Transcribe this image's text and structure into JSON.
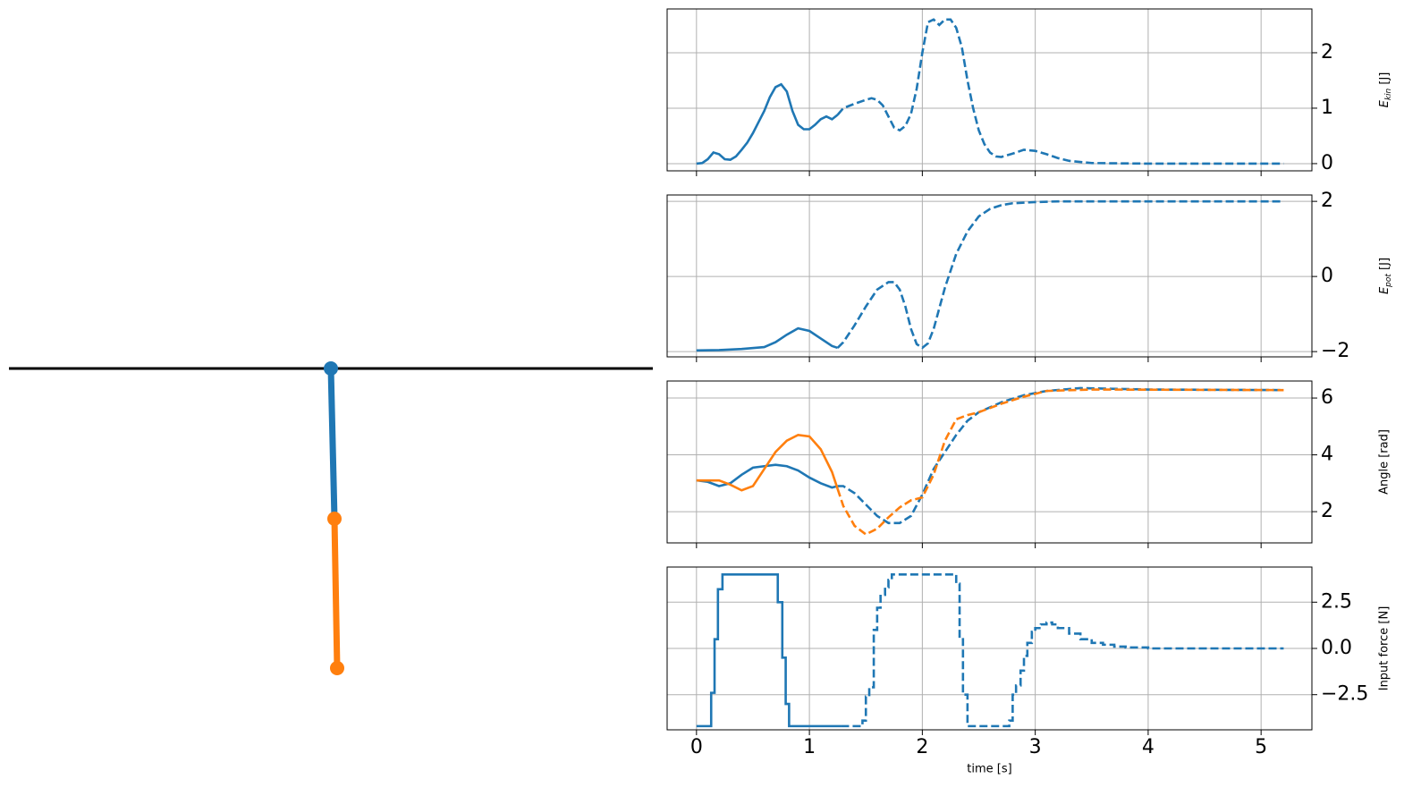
{
  "chart_data": [
    {
      "type": "line",
      "ylabel": {
        "base": "E",
        "sub": "kin",
        "rest": " [J]"
      },
      "xlim": [
        -0.26,
        5.45
      ],
      "xticks": [
        0,
        1,
        2,
        3,
        4,
        5
      ],
      "ylim": [
        -0.13,
        2.79
      ],
      "yticks": [
        0,
        1,
        2
      ],
      "grid": true,
      "series": [
        {
          "color": "#1f77b4",
          "style": "solid",
          "x": [
            0,
            0.05,
            0.1,
            0.15,
            0.2,
            0.25,
            0.3,
            0.35,
            0.4,
            0.45,
            0.5,
            0.55,
            0.6,
            0.65,
            0.7,
            0.75,
            0.8,
            0.85,
            0.9,
            0.95,
            1.0,
            1.05,
            1.1,
            1.15,
            1.2,
            1.25
          ],
          "values": [
            0,
            0.01,
            0.08,
            0.2,
            0.17,
            0.08,
            0.07,
            0.13,
            0.25,
            0.38,
            0.55,
            0.75,
            0.95,
            1.2,
            1.38,
            1.43,
            1.3,
            0.95,
            0.7,
            0.62,
            0.62,
            0.7,
            0.8,
            0.85,
            0.8,
            0.88
          ]
        },
        {
          "color": "#1f77b4",
          "style": "dashed",
          "x": [
            1.25,
            1.3,
            1.4,
            1.5,
            1.55,
            1.6,
            1.65,
            1.7,
            1.75,
            1.8,
            1.85,
            1.9,
            1.95,
            2.0,
            2.05,
            2.1,
            2.15,
            2.2,
            2.25,
            2.3,
            2.35,
            2.4,
            2.45,
            2.5,
            2.55,
            2.6,
            2.65,
            2.7,
            2.8,
            2.9,
            3.0,
            3.1,
            3.2,
            3.3,
            3.5,
            4.0,
            4.5,
            5.2
          ],
          "values": [
            0.88,
            1.0,
            1.08,
            1.15,
            1.18,
            1.15,
            1.05,
            0.85,
            0.65,
            0.6,
            0.68,
            0.9,
            1.35,
            2.0,
            2.55,
            2.6,
            2.5,
            2.6,
            2.6,
            2.45,
            2.1,
            1.5,
            1.0,
            0.6,
            0.35,
            0.2,
            0.13,
            0.12,
            0.18,
            0.25,
            0.23,
            0.17,
            0.1,
            0.05,
            0.01,
            0,
            0,
            0
          ]
        }
      ]
    },
    {
      "type": "line",
      "ylabel": {
        "base": "E",
        "sub": "pot",
        "rest": " [J]"
      },
      "xlim": [
        -0.26,
        5.45
      ],
      "xticks": [
        0,
        1,
        2,
        3,
        4,
        5
      ],
      "ylim": [
        -2.14,
        2.17
      ],
      "yticks": [
        {
          "value": -2,
          "label": "−2"
        },
        0,
        2
      ],
      "grid": true,
      "series": [
        {
          "color": "#1f77b4",
          "style": "solid",
          "x": [
            0,
            0.2,
            0.4,
            0.6,
            0.7,
            0.8,
            0.9,
            1.0,
            1.1,
            1.2,
            1.25
          ],
          "values": [
            -1.97,
            -1.96,
            -1.93,
            -1.88,
            -1.75,
            -1.55,
            -1.38,
            -1.45,
            -1.65,
            -1.85,
            -1.9
          ]
        },
        {
          "color": "#1f77b4",
          "style": "dashed",
          "x": [
            1.25,
            1.3,
            1.4,
            1.5,
            1.6,
            1.7,
            1.75,
            1.8,
            1.85,
            1.9,
            1.95,
            2.0,
            2.05,
            2.1,
            2.2,
            2.3,
            2.4,
            2.5,
            2.6,
            2.7,
            2.8,
            3.0,
            3.2,
            5.2
          ],
          "values": [
            -1.9,
            -1.75,
            -1.3,
            -0.8,
            -0.35,
            -0.15,
            -0.15,
            -0.35,
            -0.8,
            -1.4,
            -1.8,
            -1.9,
            -1.78,
            -1.4,
            -0.3,
            0.6,
            1.2,
            1.6,
            1.8,
            1.9,
            1.95,
            1.98,
            2.0,
            2.0
          ]
        }
      ]
    },
    {
      "type": "line",
      "ylabel": "Angle  [rad]",
      "xlim": [
        -0.26,
        5.45
      ],
      "xticks": [
        0,
        1,
        2,
        3,
        4,
        5
      ],
      "ylim": [
        0.9,
        6.6
      ],
      "yticks": [
        2,
        4,
        6
      ],
      "grid": true,
      "series": [
        {
          "color": "#1f77b4",
          "style": "solid",
          "x": [
            0,
            0.1,
            0.2,
            0.3,
            0.4,
            0.5,
            0.6,
            0.7,
            0.8,
            0.9,
            1.0,
            1.1,
            1.2,
            1.25
          ],
          "values": [
            3.1,
            3.05,
            2.9,
            3.0,
            3.3,
            3.55,
            3.6,
            3.65,
            3.6,
            3.45,
            3.2,
            3.0,
            2.85,
            2.9
          ]
        },
        {
          "color": "#1f77b4",
          "style": "dashed",
          "x": [
            1.25,
            1.3,
            1.4,
            1.5,
            1.6,
            1.7,
            1.8,
            1.9,
            2.0,
            2.1,
            2.2,
            2.3,
            2.4,
            2.5,
            2.7,
            2.9,
            3.1,
            3.4,
            4.0,
            5.2
          ],
          "values": [
            2.9,
            2.9,
            2.65,
            2.25,
            1.85,
            1.6,
            1.6,
            1.85,
            2.6,
            3.5,
            4.1,
            4.7,
            5.2,
            5.5,
            5.85,
            6.1,
            6.25,
            6.35,
            6.3,
            6.28
          ]
        },
        {
          "color": "#ff7f0e",
          "style": "solid",
          "x": [
            0,
            0.2,
            0.3,
            0.4,
            0.5,
            0.6,
            0.7,
            0.8,
            0.9,
            1.0,
            1.1,
            1.2,
            1.25
          ],
          "values": [
            3.1,
            3.1,
            2.95,
            2.75,
            2.9,
            3.5,
            4.1,
            4.5,
            4.7,
            4.65,
            4.2,
            3.4,
            2.8
          ]
        },
        {
          "color": "#ff7f0e",
          "style": "dashed",
          "x": [
            1.25,
            1.3,
            1.4,
            1.5,
            1.6,
            1.7,
            1.8,
            1.9,
            2.0,
            2.1,
            2.2,
            2.3,
            2.4,
            2.5,
            2.7,
            2.9,
            3.1,
            3.5,
            5.2
          ],
          "values": [
            2.8,
            2.2,
            1.5,
            1.2,
            1.4,
            1.8,
            2.15,
            2.4,
            2.5,
            3.3,
            4.5,
            5.25,
            5.4,
            5.5,
            5.8,
            6.05,
            6.25,
            6.3,
            6.28
          ]
        }
      ]
    },
    {
      "type": "line",
      "drawstyle": "steps-post",
      "ylabel": "Input force [N]",
      "xlabel": "time [s]",
      "xlim": [
        -0.26,
        5.45
      ],
      "xticks": [
        0,
        1,
        2,
        3,
        4,
        5
      ],
      "ylim": [
        -4.4,
        4.4
      ],
      "yticks": [
        {
          "value": -2.5,
          "label": "−2.5"
        },
        {
          "value": 0,
          "label": "0.0"
        },
        2.5
      ],
      "grid": true,
      "series": [
        {
          "color": "#1f77b4",
          "style": "solid",
          "x": [
            0,
            0.13,
            0.16,
            0.19,
            0.23,
            0.72,
            0.76,
            0.79,
            0.82,
            1.28
          ],
          "values": [
            -4.2,
            -2.4,
            0.5,
            3.2,
            4.0,
            2.5,
            -0.5,
            -3.0,
            -4.2,
            -4.2
          ]
        },
        {
          "color": "#1f77b4",
          "style": "dashed",
          "x": [
            1.28,
            1.47,
            1.5,
            1.53,
            1.57,
            1.6,
            1.63,
            1.67,
            1.7,
            1.73,
            2.3,
            2.33,
            2.36,
            2.4,
            2.77,
            2.8,
            2.83,
            2.87,
            2.9,
            2.93,
            2.97,
            3.0,
            3.05,
            3.1,
            3.15,
            3.2,
            3.3,
            3.4,
            3.5,
            3.6,
            3.7,
            3.8,
            4.0,
            4.5,
            5.2
          ],
          "values": [
            -4.2,
            -3.9,
            -2.6,
            -2.1,
            1.0,
            2.2,
            2.9,
            3.3,
            3.7,
            4.0,
            3.5,
            0.5,
            -2.5,
            -4.2,
            -3.9,
            -2.5,
            -2.0,
            -1.2,
            -0.4,
            0.3,
            0.9,
            1.1,
            1.3,
            1.4,
            1.3,
            1.1,
            0.8,
            0.5,
            0.3,
            0.2,
            0.1,
            0.05,
            0,
            0,
            0
          ]
        }
      ]
    }
  ]
}
